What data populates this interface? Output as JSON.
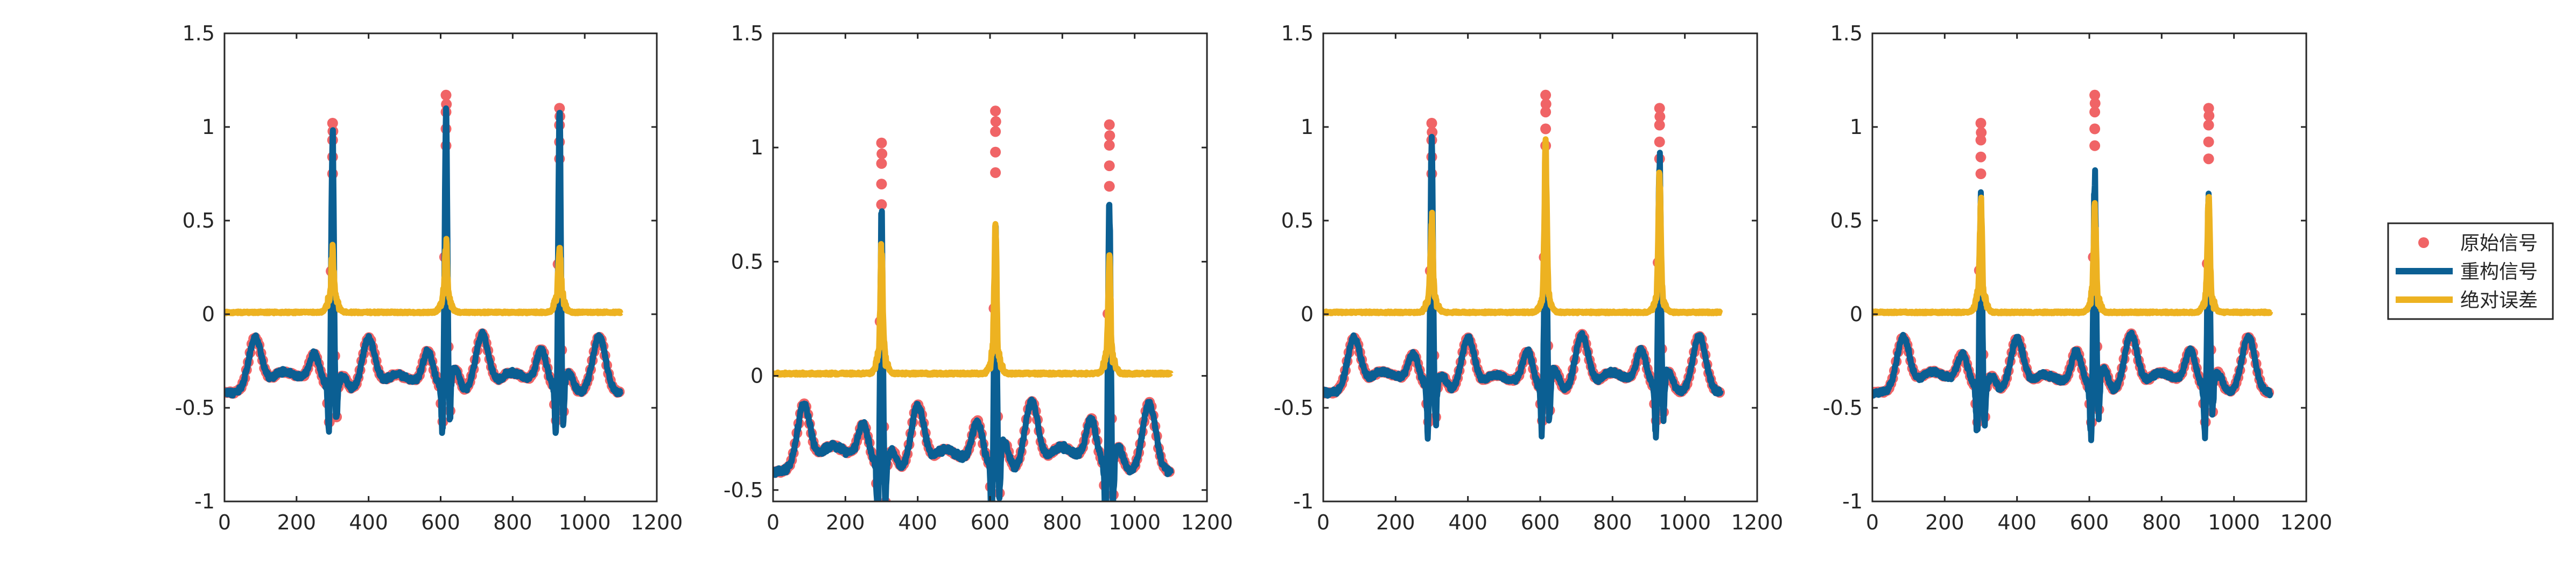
{
  "colors": {
    "original": "#f06466",
    "reconstructed": "#0b5f93",
    "error": "#edb221",
    "axis": "#262626"
  },
  "legend": {
    "placement": "right",
    "items": [
      {
        "label": "原始信号",
        "marker": "dot",
        "color": "#f06466"
      },
      {
        "label": "重构信号",
        "marker": "line",
        "color": "#0b5f93"
      },
      {
        "label": "绝对误差",
        "marker": "line",
        "color": "#edb221"
      }
    ]
  },
  "chart_data": [
    {
      "type": "line",
      "title": "",
      "xlabel": "",
      "ylabel": "",
      "xlim": [
        0,
        1200
      ],
      "ylim": [
        -1,
        1.5
      ],
      "xticks": [
        "0",
        "200",
        "400",
        "600",
        "800",
        "1000",
        "1200"
      ],
      "yticks": [
        "-1",
        "-0.5",
        "0",
        "0.5",
        "1",
        "1.5"
      ],
      "grid": false,
      "peaks": [
        {
          "x": 300,
          "original": 1.02,
          "reconstructed": 0.95,
          "error": 0.22
        },
        {
          "x": 615,
          "original": 1.17,
          "reconstructed": 1.1,
          "error": 0.25
        },
        {
          "x": 930,
          "original": 1.1,
          "reconstructed": 1.08,
          "error": 0.25
        }
      ],
      "baseline_range": [
        -0.43,
        -0.1
      ],
      "error_baseline": 0.0,
      "series": [
        {
          "name": "原始信号",
          "style": "dots"
        },
        {
          "name": "重构信号",
          "style": "line"
        },
        {
          "name": "绝对误差",
          "style": "line"
        }
      ]
    },
    {
      "type": "line",
      "title": "",
      "xlabel": "",
      "ylabel": "",
      "xlim": [
        0,
        1200
      ],
      "ylim": [
        -0.55,
        1.5
      ],
      "xticks": [
        "0",
        "200",
        "400",
        "600",
        "800",
        "1000",
        "1200"
      ],
      "yticks": [
        "-0.5",
        "0",
        "0.5",
        "1",
        "1.5"
      ],
      "grid": false,
      "peaks": [
        {
          "x": 300,
          "original": 1.02,
          "reconstructed": 0.68,
          "error": 0.45
        },
        {
          "x": 615,
          "original": 1.16,
          "reconstructed": 0.64,
          "error": 0.55
        },
        {
          "x": 930,
          "original": 1.1,
          "reconstructed": 0.76,
          "error": 0.4
        }
      ],
      "baseline_range": [
        -0.43,
        -0.1
      ],
      "error_baseline": 0.0,
      "series": [
        {
          "name": "原始信号",
          "style": "dots"
        },
        {
          "name": "重构信号",
          "style": "line"
        },
        {
          "name": "绝对误差",
          "style": "line"
        }
      ]
    },
    {
      "type": "line",
      "title": "",
      "xlabel": "",
      "ylabel": "",
      "xlim": [
        0,
        1200
      ],
      "ylim": [
        -1,
        1.5
      ],
      "xticks": [
        "0",
        "200",
        "400",
        "600",
        "800",
        "1000",
        "1200"
      ],
      "yticks": [
        "-1",
        "-0.5",
        "0",
        "0.5",
        "1",
        "1.5"
      ],
      "grid": false,
      "peaks": [
        {
          "x": 300,
          "original": 1.02,
          "reconstructed": 0.92,
          "error": 0.4
        },
        {
          "x": 615,
          "original": 1.17,
          "reconstructed": 0.78,
          "error": 0.78
        },
        {
          "x": 930,
          "original": 1.1,
          "reconstructed": 0.82,
          "error": 0.65
        }
      ],
      "baseline_range": [
        -0.43,
        -0.1
      ],
      "error_baseline": 0.0,
      "series": [
        {
          "name": "原始信号",
          "style": "dots"
        },
        {
          "name": "重构信号",
          "style": "line"
        },
        {
          "name": "绝对误差",
          "style": "line"
        }
      ]
    },
    {
      "type": "line",
      "title": "",
      "xlabel": "",
      "ylabel": "",
      "xlim": [
        0,
        1200
      ],
      "ylim": [
        -1,
        1.5
      ],
      "xticks": [
        "0",
        "200",
        "400",
        "600",
        "800",
        "1000",
        "1200"
      ],
      "yticks": [
        "-1",
        "-0.5",
        "0",
        "0.5",
        "1",
        "1.5"
      ],
      "grid": false,
      "peaks": [
        {
          "x": 300,
          "original": 1.02,
          "reconstructed": 0.58,
          "error": 0.48
        },
        {
          "x": 615,
          "original": 1.17,
          "reconstructed": 0.72,
          "error": 0.45
        },
        {
          "x": 930,
          "original": 1.1,
          "reconstructed": 0.65,
          "error": 0.5
        }
      ],
      "baseline_range": [
        -0.43,
        -0.1
      ],
      "error_baseline": 0.0,
      "series": [
        {
          "name": "原始信号",
          "style": "dots"
        },
        {
          "name": "重构信号",
          "style": "line"
        },
        {
          "name": "绝对误差",
          "style": "line"
        }
      ]
    }
  ]
}
